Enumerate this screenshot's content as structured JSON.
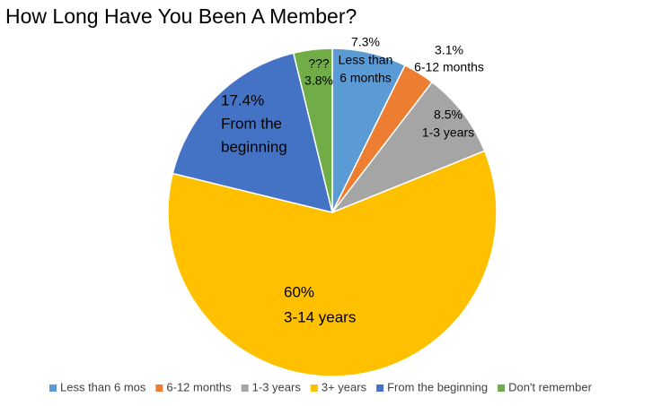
{
  "chart_data": {
    "type": "pie",
    "title": "How Long Have You Been A Member?",
    "categories": [
      "Less than 6 mos",
      "6-12 months",
      "1-3 years",
      "3+ years",
      "From the beginning",
      "Don't remember"
    ],
    "values": [
      7.3,
      3.1,
      8.5,
      60,
      17.4,
      3.8
    ],
    "value_labels": [
      "7.3%",
      "3.1%",
      "8.5%",
      "60%",
      "17.4%",
      "3.8%"
    ],
    "label_lines": [
      [
        "Less than",
        "6 months"
      ],
      [
        "6-12 months"
      ],
      [
        "1-3 years"
      ],
      [
        "3-14 years"
      ],
      [
        "From the",
        "beginning"
      ],
      [
        "???"
      ]
    ],
    "value_label_position": [
      "above",
      "above",
      "above",
      "above",
      "above",
      "below"
    ],
    "colors": [
      "#5b9bd5",
      "#ed7d31",
      "#a5a5a5",
      "#ffc000",
      "#4472c4",
      "#70ad47"
    ],
    "legend": "bottom"
  }
}
